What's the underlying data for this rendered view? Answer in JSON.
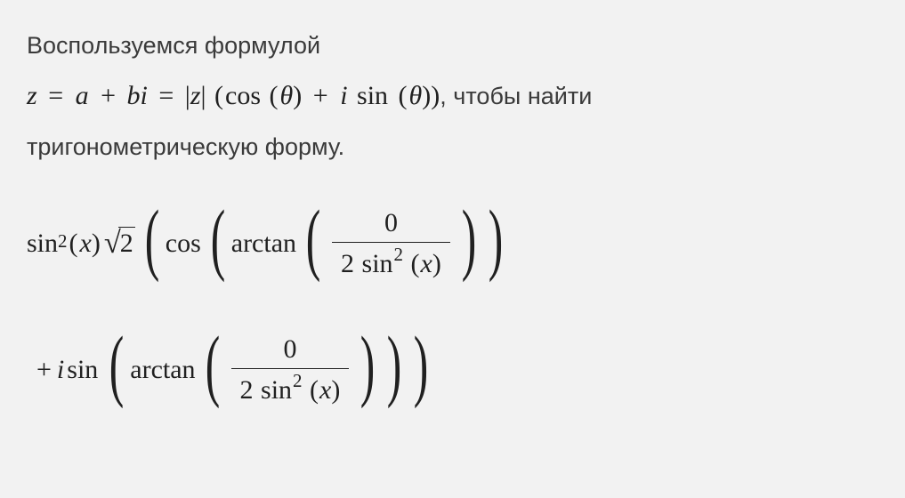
{
  "text": {
    "line1": "Воспользуемся формулой",
    "line2_suffix": ", чтобы найти",
    "line3": "тригонометрическую форму."
  },
  "formula_inline": {
    "z": "z",
    "eq1": "=",
    "a": "a",
    "plus": "+",
    "b": "b",
    "i": "i",
    "eq2": "=",
    "bar_open": "|",
    "z2": "z",
    "bar_close": "|",
    "lp": "(",
    "cos": "cos",
    "lp2": "(",
    "theta1": "θ",
    "rp2": ")",
    "plus2": "+",
    "i2": "i",
    "sin": "sin",
    "lp3": "(",
    "theta2": "θ",
    "rp3": ")",
    "rp": ")"
  },
  "math_block": {
    "row1": {
      "sin": "sin",
      "exp": "2",
      "lp_x": "(",
      "x": "x",
      "rp_x": ")",
      "sqrt_arg": "2",
      "cos": "cos",
      "arctan": "arctan",
      "frac_num": "0",
      "frac_den_2": "2",
      "frac_den_sin": "sin",
      "frac_den_exp": "2",
      "frac_den_lp": "(",
      "frac_den_x": "x",
      "frac_den_rp": ")"
    },
    "row2": {
      "plus": "+",
      "i": "i",
      "sin": "sin",
      "arctan": "arctan",
      "frac_num": "0",
      "frac_den_2": "2",
      "frac_den_sin": "sin",
      "frac_den_exp": "2",
      "frac_den_lp": "(",
      "frac_den_x": "x",
      "frac_den_rp": ")"
    }
  },
  "colors": {
    "bg": "#f2f2f2",
    "text": "#3a3a3a",
    "math": "#202020"
  }
}
